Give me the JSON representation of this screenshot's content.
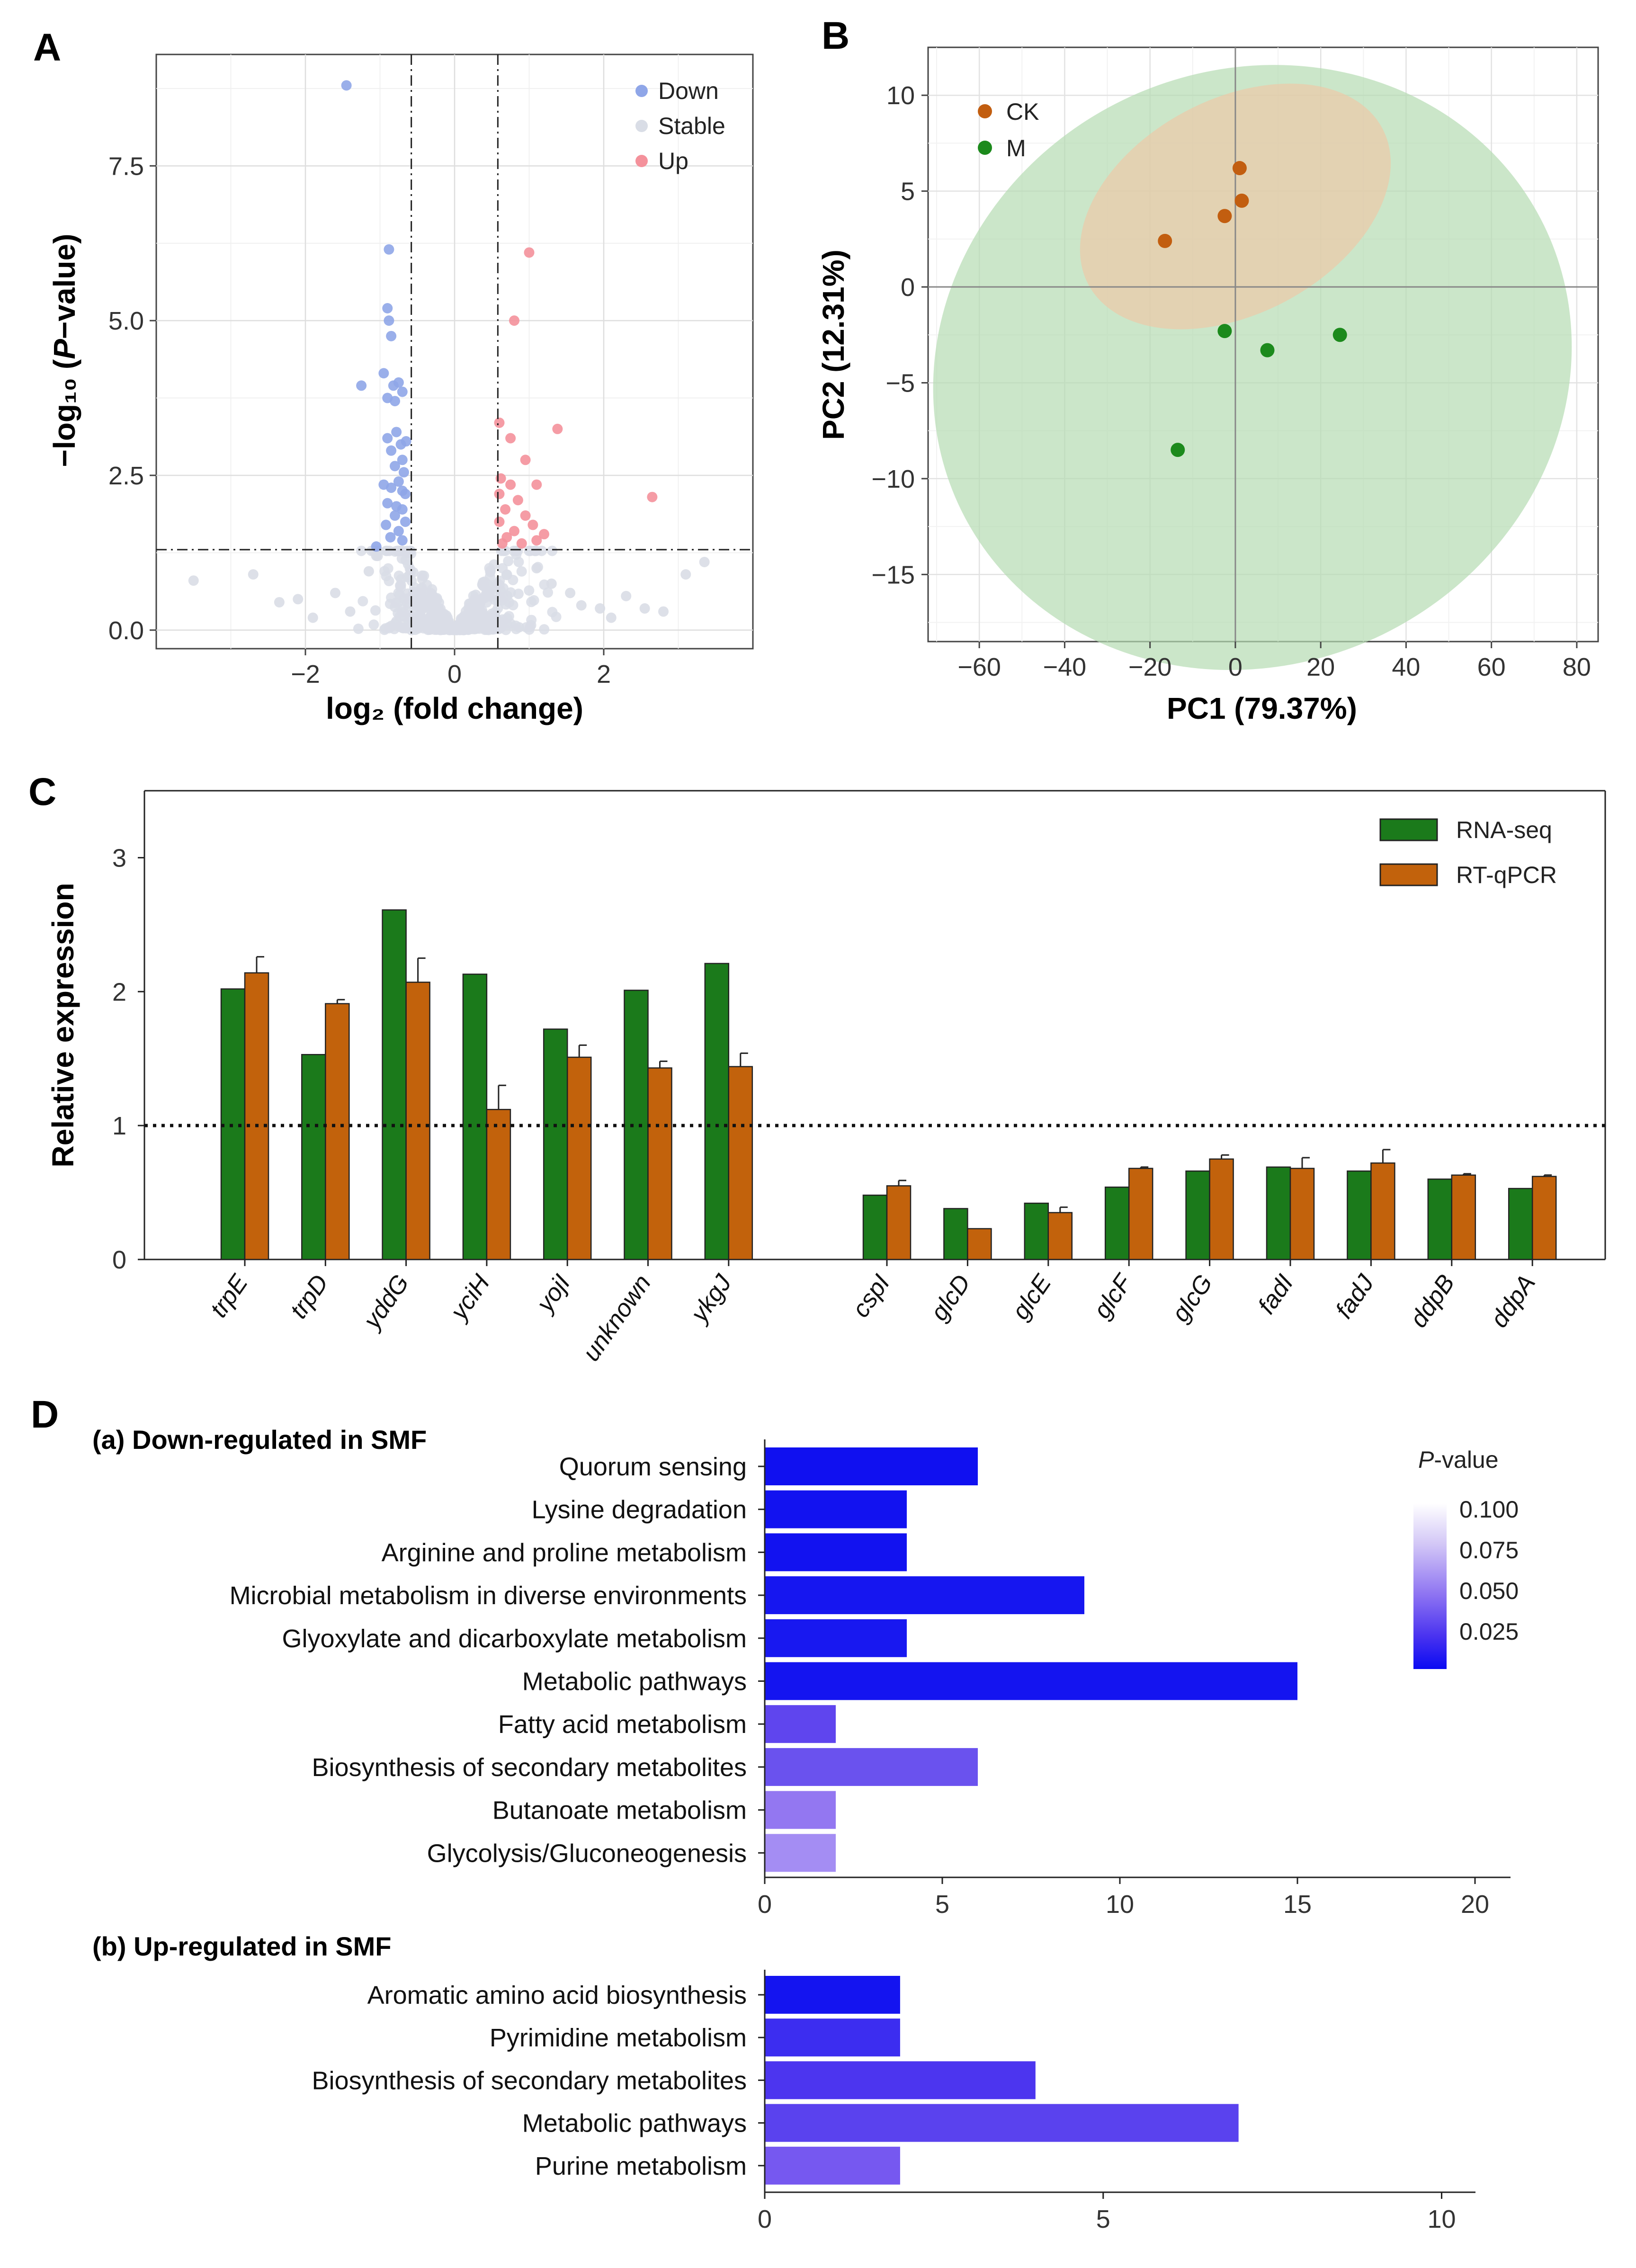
{
  "chart_data": [
    {
      "panel": "A",
      "type": "scatter",
      "subtype": "volcano",
      "xlabel": "log₂ (fold change)",
      "ylabel_parts": [
        "−log₁₀ (",
        "P",
        "−value)"
      ],
      "xlim": [
        -4,
        4
      ],
      "ylim": [
        -0.3,
        9.3
      ],
      "xticks": [
        -2,
        0,
        2
      ],
      "yticks": [
        0.0,
        2.5,
        5.0,
        7.5
      ],
      "xtick_labels": [
        "−2",
        "0",
        "2"
      ],
      "ytick_labels": [
        "0.0",
        "2.5",
        "5.0",
        "7.5"
      ],
      "fc_threshold": 0.58,
      "p_threshold": 1.3,
      "legend": [
        "Down",
        "Stable",
        "Up"
      ],
      "colors": {
        "Down": "#8fa6e8",
        "Stable": "#d9dde6",
        "Up": "#f4919b"
      },
      "down_points": [
        [
          -1.45,
          8.8
        ],
        [
          -0.88,
          6.15
        ],
        [
          -0.9,
          5.2
        ],
        [
          -0.88,
          5.0
        ],
        [
          -0.85,
          4.75
        ],
        [
          -1.25,
          3.95
        ],
        [
          -0.95,
          4.15
        ],
        [
          -0.82,
          3.95
        ],
        [
          -0.75,
          4.0
        ],
        [
          -0.9,
          3.75
        ],
        [
          -0.8,
          3.7
        ],
        [
          -0.7,
          3.85
        ],
        [
          -0.78,
          3.2
        ],
        [
          -0.9,
          3.1
        ],
        [
          -0.65,
          3.05
        ],
        [
          -0.72,
          3.0
        ],
        [
          -0.85,
          2.9
        ],
        [
          -0.7,
          2.75
        ],
        [
          -0.8,
          2.65
        ],
        [
          -0.68,
          2.55
        ],
        [
          -0.95,
          2.35
        ],
        [
          -0.75,
          2.4
        ],
        [
          -0.85,
          2.3
        ],
        [
          -0.7,
          2.25
        ],
        [
          -0.66,
          2.2
        ],
        [
          -0.9,
          2.05
        ],
        [
          -0.78,
          2.0
        ],
        [
          -0.7,
          1.95
        ],
        [
          -0.8,
          1.85
        ],
        [
          -0.92,
          1.7
        ],
        [
          -0.66,
          1.75
        ],
        [
          -0.75,
          1.6
        ],
        [
          -0.86,
          1.5
        ],
        [
          -1.05,
          1.35
        ],
        [
          -0.7,
          1.45
        ]
      ],
      "up_points": [
        [
          1.0,
          6.1
        ],
        [
          0.8,
          5.0
        ],
        [
          0.6,
          3.35
        ],
        [
          0.75,
          3.1
        ],
        [
          1.38,
          3.25
        ],
        [
          0.95,
          2.75
        ],
        [
          0.62,
          2.45
        ],
        [
          0.75,
          2.35
        ],
        [
          1.1,
          2.35
        ],
        [
          0.6,
          2.2
        ],
        [
          0.85,
          2.1
        ],
        [
          0.68,
          1.95
        ],
        [
          0.95,
          1.85
        ],
        [
          1.05,
          1.7
        ],
        [
          0.6,
          1.75
        ],
        [
          0.8,
          1.6
        ],
        [
          0.7,
          1.5
        ],
        [
          1.2,
          1.55
        ],
        [
          2.65,
          2.15
        ],
        [
          0.9,
          1.4
        ],
        [
          0.64,
          1.4
        ],
        [
          1.1,
          1.45
        ]
      ]
    },
    {
      "panel": "B",
      "type": "scatter",
      "subtype": "pca",
      "xlabel": "PC1 (79.37%)",
      "ylabel": "PC2 (12.31%)",
      "xlim": [
        -72,
        85
      ],
      "ylim": [
        -18.5,
        12.5
      ],
      "xticks": [
        -60,
        -40,
        -20,
        0,
        20,
        40,
        60,
        80
      ],
      "xtick_labels": [
        "−60",
        "−40",
        "−20",
        "0",
        "20",
        "40",
        "60",
        "80"
      ],
      "yticks": [
        -15,
        -10,
        -5,
        0,
        5,
        10
      ],
      "ytick_labels": [
        "−15",
        "−10",
        "−5",
        "0",
        "5",
        "10"
      ],
      "groups": [
        {
          "name": "CK",
          "color": "#c25e10",
          "fill": "#ecc9a8",
          "points": [
            [
              -16.5,
              2.4
            ],
            [
              -2.5,
              3.7
            ],
            [
              1.5,
              4.5
            ],
            [
              1.0,
              6.2
            ]
          ],
          "ellipse": {
            "cx": 0,
            "cy": 4.2,
            "rx": 39,
            "ry": 5.6,
            "angle": 28
          }
        },
        {
          "name": "M",
          "color": "#1c8a1c",
          "fill": "#b5dcb2",
          "points": [
            [
              -2.5,
              -2.3
            ],
            [
              7.5,
              -3.3
            ],
            [
              24.5,
              -2.5
            ],
            [
              -13.5,
              -8.5
            ]
          ],
          "ellipse": {
            "cx": 4,
            "cy": -4.2,
            "rx": 76,
            "ry": 15.5,
            "angle": 26
          }
        }
      ]
    },
    {
      "panel": "C",
      "type": "bar",
      "ylabel": "Relative expression",
      "ylim": [
        0,
        3.5
      ],
      "yticks": [
        0,
        1,
        2,
        3
      ],
      "ytick_labels": [
        "0",
        "1",
        "2",
        "3"
      ],
      "reference_line": 1,
      "categories": [
        "trpE",
        "trpD",
        "yddG",
        "yciH",
        "yojI",
        "unknown",
        "ykgJ",
        "cspI",
        "glcD",
        "glcE",
        "glcF",
        "glcG",
        "fadI",
        "fadJ",
        "ddpB",
        "ddpA"
      ],
      "series": [
        {
          "name": "RNA-seq",
          "color": "#1b7a1b",
          "values": [
            2.02,
            1.53,
            2.61,
            2.13,
            1.72,
            2.01,
            2.21,
            0.48,
            0.38,
            0.42,
            0.54,
            0.66,
            0.69,
            0.66,
            0.6,
            0.53
          ]
        },
        {
          "name": "RT-qPCR",
          "color": "#c2620c",
          "values": [
            2.14,
            1.91,
            2.07,
            1.12,
            1.51,
            1.43,
            1.44,
            0.55,
            0.23,
            0.35,
            0.68,
            0.75,
            0.68,
            0.72,
            0.63,
            0.62
          ],
          "errors": [
            0.12,
            0.03,
            0.18,
            0.18,
            0.09,
            0.05,
            0.1,
            0.04,
            0,
            0.04,
            0.01,
            0.03,
            0.08,
            0.1,
            0.01,
            0.01
          ]
        }
      ]
    },
    {
      "panel": "D(a)",
      "type": "bar",
      "orientation": "horizontal",
      "title": "(a) Down-regulated in SMF",
      "xlim": [
        0,
        21
      ],
      "xticks": [
        0,
        5,
        10,
        15,
        20
      ],
      "xtick_labels": [
        "0",
        "5",
        "10",
        "15",
        "20"
      ],
      "categories": [
        "Quorum sensing",
        "Lysine degradation",
        "Arginine and proline metabolism",
        "Microbial metabolism in diverse environments",
        "Glyoxylate and dicarboxylate metabolism",
        "Metabolic pathways",
        "Fatty acid metabolism",
        "Biosynthesis of secondary metabolites",
        "Butanoate metabolism",
        "Glycolysis/Gluconeogenesis"
      ],
      "values": [
        6,
        4,
        4,
        9,
        4,
        15,
        2,
        6,
        2,
        2
      ],
      "colors": [
        "#1010f0",
        "#1212f0",
        "#1212f0",
        "#1616f0",
        "#1818f0",
        "#1414f0",
        "#5f45ee",
        "#6a52ee",
        "#9377f1",
        "#a48df3"
      ],
      "legend": {
        "title_italic": "P",
        "title_rest": "-value",
        "ticks": [
          "0.100",
          "0.075",
          "0.050",
          "0.025"
        ]
      }
    },
    {
      "panel": "D(b)",
      "type": "bar",
      "orientation": "horizontal",
      "title": "(b) Up-regulated in SMF",
      "xlim": [
        0,
        10.5
      ],
      "xticks": [
        0,
        5,
        10
      ],
      "xtick_labels": [
        "0",
        "5",
        "10"
      ],
      "categories": [
        "Aromatic amino acid biosynthesis",
        "Pyrimidine metabolism",
        "Biosynthesis of secondary metabolites",
        "Metabolic pathways",
        "Purine metabolism"
      ],
      "values": [
        2,
        2,
        4,
        7,
        2
      ],
      "colors": [
        "#1414f0",
        "#3c2df0",
        "#4c35ef",
        "#5a42ee",
        "#7658f0"
      ]
    }
  ],
  "panels": {
    "a": "A",
    "b": "B",
    "c": "C",
    "d": "D"
  },
  "legendA": {
    "down": "Down",
    "stable": "Stable",
    "up": "Up"
  },
  "legendB": {
    "ck": "CK",
    "m": "M"
  },
  "legendC": {
    "rna": "RNA-seq",
    "qpcr": "RT-qPCR"
  }
}
